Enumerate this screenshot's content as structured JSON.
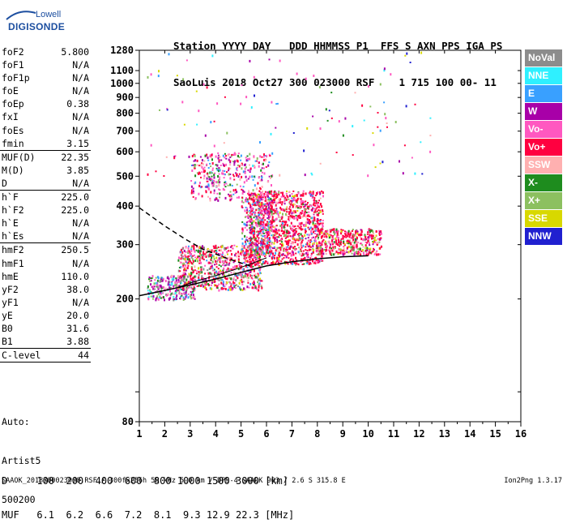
{
  "logo": {
    "line1": "Lowell",
    "line2": "DIGISONDE"
  },
  "header": {
    "line1": "Station YYYY DAY   DDD HHMMSS P1  FFS S AXN PPS IGA PS",
    "line2": "SaoLuis 2018 Oct27 300 023000 RSF    1 715 100 00- 11"
  },
  "params": [
    {
      "k": "foF2",
      "v": "5.800"
    },
    {
      "k": "foF1",
      "v": "N/A"
    },
    {
      "k": "foF1p",
      "v": "N/A"
    },
    {
      "k": "foE",
      "v": "N/A"
    },
    {
      "k": "foEp",
      "v": "0.38"
    },
    {
      "k": "fxI",
      "v": "N/A"
    },
    {
      "k": "foEs",
      "v": "N/A"
    },
    {
      "k": "fmin",
      "v": "3.15"
    },
    {
      "sep": true
    },
    {
      "k": "MUF(D)",
      "v": "22.35"
    },
    {
      "k": "M(D)",
      "v": "3.85"
    },
    {
      "k": "D",
      "v": "N/A"
    },
    {
      "sep": true
    },
    {
      "k": "h`F",
      "v": "225.0"
    },
    {
      "k": "h`F2",
      "v": "225.0"
    },
    {
      "k": "h`E",
      "v": "N/A"
    },
    {
      "k": "h`Es",
      "v": "N/A"
    },
    {
      "sep": true
    },
    {
      "k": "hmF2",
      "v": "250.5"
    },
    {
      "k": "hmF1",
      "v": "N/A"
    },
    {
      "k": "hmE",
      "v": "110.0"
    },
    {
      "k": "yF2",
      "v": "38.0"
    },
    {
      "k": "yF1",
      "v": "N/A"
    },
    {
      "k": "yE",
      "v": "20.0"
    },
    {
      "k": "B0",
      "v": "31.6"
    },
    {
      "k": "B1",
      "v": "3.88"
    },
    {
      "sep": true
    },
    {
      "k": "C-level",
      "v": "44"
    },
    {
      "sep": true
    }
  ],
  "auto": {
    "l1": "Auto:",
    "l2": "Artist5",
    "l3": "500200"
  },
  "legend": [
    {
      "label": "NoVal",
      "color": "#8c8c8c"
    },
    {
      "label": "NNE",
      "color": "#2ff0ff"
    },
    {
      "label": "E",
      "color": "#39a0ff"
    },
    {
      "label": "W",
      "color": "#a800a8"
    },
    {
      "label": "Vo-",
      "color": "#ff58c0"
    },
    {
      "label": "Vo+",
      "color": "#ff0040"
    },
    {
      "label": "SSW",
      "color": "#ffb0b0"
    },
    {
      "label": "X-",
      "color": "#1e8c1e"
    },
    {
      "label": "X+",
      "color": "#8cc060"
    },
    {
      "label": "SSE",
      "color": "#d8d800"
    },
    {
      "label": "NNW",
      "color": "#2020d0"
    }
  ],
  "dmuf": {
    "d_line": "D     100  200  400  600  800 1000 1500 3000 [km]",
    "muf_line": "MUF   6.1  6.2  6.6  7.2  8.1  9.3 12.9 22.3 [MHz]"
  },
  "footer": "SAAOK_2018300023000.RSF / 300fx256h 50 kHz 5.0 km / DPS-4 SAAOK 903 / 2.6 S 315.8 E",
  "version": "Ion2Png 1.3.17",
  "chart_data": {
    "type": "scatter",
    "xlim": [
      1,
      16
    ],
    "ylim": [
      80,
      1280
    ],
    "x_scale": "linear",
    "y_scale": "log",
    "xticks": [
      "1",
      "2",
      "3",
      "4",
      "5",
      "6",
      "7",
      "8",
      "9",
      "10",
      "11",
      "12",
      "13",
      "14",
      "15",
      "16"
    ],
    "yticks": [
      {
        "v": 80,
        "label": "80"
      },
      {
        "v": 100,
        "label": ""
      },
      {
        "v": 200,
        "label": "200"
      },
      {
        "v": 300,
        "label": "300"
      },
      {
        "v": 400,
        "label": "400"
      },
      {
        "v": 500,
        "label": "500"
      },
      {
        "v": 600,
        "label": "600"
      },
      {
        "v": 700,
        "label": "700"
      },
      {
        "v": 800,
        "label": "800"
      },
      {
        "v": 900,
        "label": "900"
      },
      {
        "v": 1000,
        "label": "1000"
      },
      {
        "v": 1100,
        "label": "1100"
      },
      {
        "v": 1280,
        "label": "1280"
      }
    ],
    "regions": [
      {
        "xr": [
          1.3,
          3.2
        ],
        "yr": [
          200,
          240
        ],
        "n": 260,
        "w": [
          1,
          1,
          1,
          3,
          2,
          0,
          1,
          1,
          1,
          0,
          0
        ]
      },
      {
        "xr": [
          2.5,
          5.8
        ],
        "yr": [
          215,
          300
        ],
        "n": 700,
        "w": [
          1,
          0,
          1,
          1,
          3,
          6,
          1,
          1,
          1,
          1,
          0
        ]
      },
      {
        "xr": [
          5.3,
          8.2
        ],
        "yr": [
          260,
          450
        ],
        "n": 1200,
        "w": [
          0,
          0,
          1,
          1,
          3,
          10,
          1,
          1,
          1,
          1,
          0
        ]
      },
      {
        "xr": [
          8.0,
          10.5
        ],
        "yr": [
          280,
          340
        ],
        "n": 420,
        "w": [
          0,
          0,
          0,
          1,
          2,
          5,
          1,
          1,
          1,
          1,
          0
        ]
      },
      {
        "xr": [
          3.0,
          6.2
        ],
        "yr": [
          420,
          600
        ],
        "n": 380,
        "w": [
          0,
          0,
          1,
          2,
          4,
          3,
          1,
          1,
          1,
          0,
          0
        ]
      },
      {
        "xr": [
          5.0,
          6.2
        ],
        "yr": [
          280,
          420
        ],
        "n": 260,
        "w": [
          0,
          0,
          2,
          1,
          3,
          2,
          0,
          1,
          1,
          0,
          0
        ]
      },
      {
        "xr": [
          1.3,
          12.5
        ],
        "yr": [
          500,
          1280
        ],
        "n": 120,
        "w": [
          0,
          1,
          1,
          2,
          3,
          2,
          1,
          1,
          1,
          1,
          1
        ]
      }
    ],
    "curves": [
      {
        "style": "solid",
        "points": [
          [
            1,
            205
          ],
          [
            2,
            213
          ],
          [
            3,
            222
          ],
          [
            4,
            232
          ],
          [
            5,
            244
          ],
          [
            6,
            256
          ],
          [
            7,
            264
          ],
          [
            8,
            270
          ],
          [
            9,
            274
          ],
          [
            10,
            276
          ]
        ]
      },
      {
        "style": "dashed",
        "points": [
          [
            1,
            395
          ],
          [
            2,
            345
          ],
          [
            2.8,
            313
          ],
          [
            3.5,
            290
          ],
          [
            4.5,
            270
          ],
          [
            5.4,
            255
          ]
        ]
      },
      {
        "style": "thin",
        "points": [
          [
            2.5,
            218
          ],
          [
            3.2,
            228
          ],
          [
            4,
            238
          ],
          [
            4.8,
            250
          ],
          [
            5.5,
            262
          ],
          [
            6,
            272
          ]
        ]
      }
    ]
  }
}
